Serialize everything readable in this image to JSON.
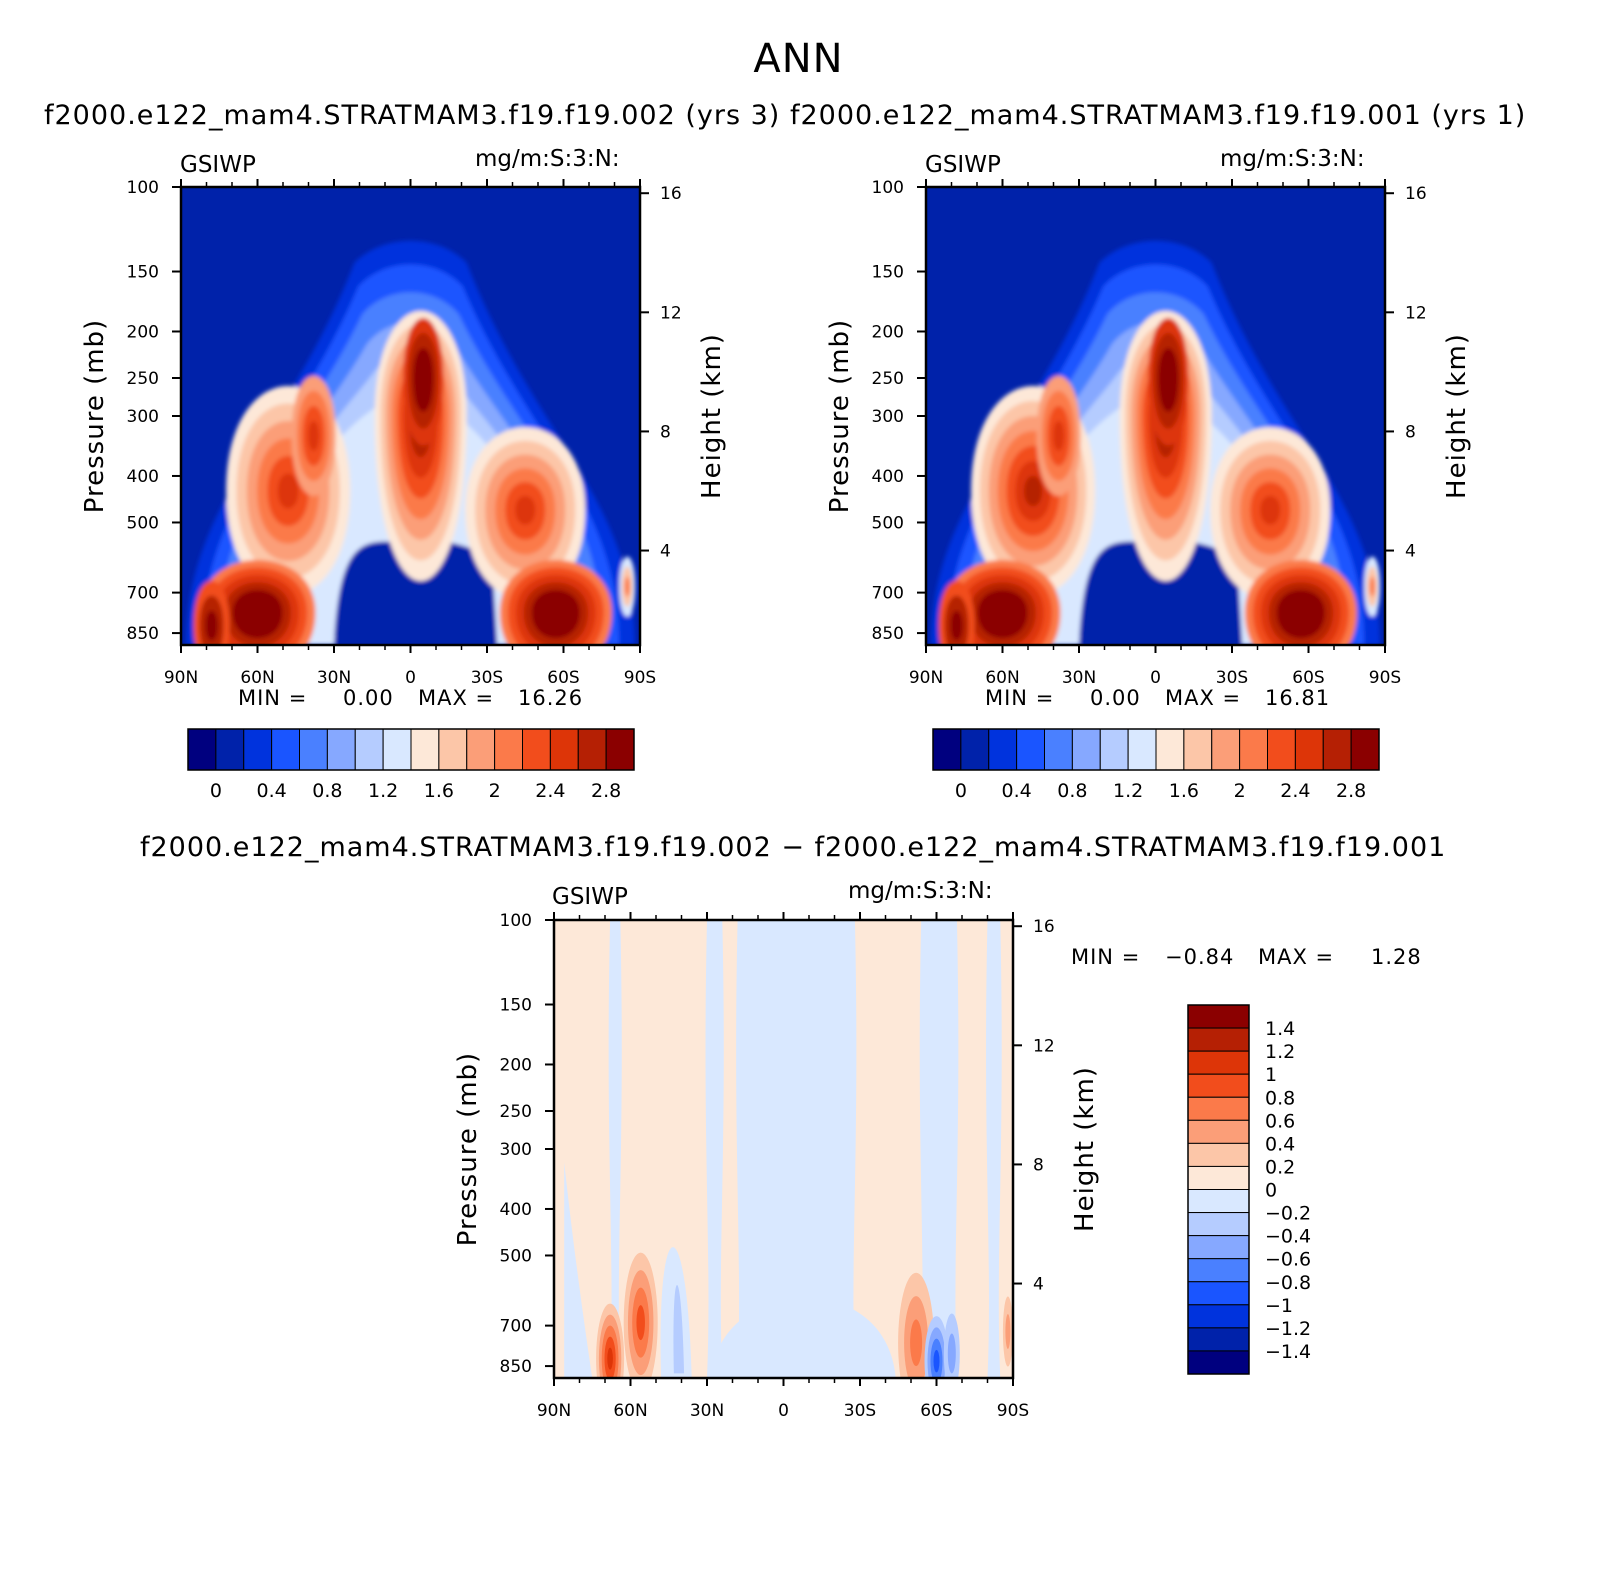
{
  "figure": {
    "title": "ANN",
    "diff_title": "f2000.e122_mam4.STRATMAM3.f19.f19.002 − f2000.e122_mam4.STRATMAM3.f19.f19.001"
  },
  "panels": {
    "p1": {
      "title": "f2000.e122_mam4.STRATMAM3.f19.f19.002 (yrs 3)",
      "left_label": "GSIWP",
      "right_label": "mg/m:S:3:N:",
      "min_label": "MIN =",
      "min_value": "0.00",
      "max_label": "MAX =",
      "max_value": "16.26"
    },
    "p2": {
      "title": "f2000.e122_mam4.STRATMAM3.f19.f19.001 (yrs 1)",
      "left_label": "GSIWP",
      "right_label": "mg/m:S:3:N:",
      "min_label": "MIN =",
      "min_value": "0.00",
      "max_label": "MAX =",
      "max_value": "16.81"
    },
    "p3": {
      "left_label": "GSIWP",
      "right_label": "mg/m:S:3:N:",
      "min_label": "MIN =",
      "min_value": "−0.84",
      "max_label": "MAX =",
      "max_value": "1.28"
    }
  },
  "colors": {
    "abs_levels": [
      "#00007f",
      "#0022aa",
      "#0033dd",
      "#1a55ff",
      "#4a80ff",
      "#86a8ff",
      "#b5ccff",
      "#d9e8ff",
      "#fde8d8",
      "#fcc6a8",
      "#fb9e78",
      "#fb7a4a",
      "#f24d1c",
      "#dd3508",
      "#b52004",
      "#8b0000"
    ],
    "diff_levels": [
      "#8b0000",
      "#b52004",
      "#dd3508",
      "#f24d1c",
      "#fb7a4a",
      "#fb9e78",
      "#fcc6a8",
      "#fde8d8",
      "#d9e8ff",
      "#b5ccff",
      "#86a8ff",
      "#4a80ff",
      "#1a55ff",
      "#0033dd",
      "#0022aa",
      "#00007f"
    ]
  },
  "chart_data": [
    {
      "type": "heatmap",
      "name": "panel-1",
      "title": "f2000.e122_mam4.STRATMAM3.f19.f19.002 (yrs 3)",
      "variable": "GSIWP",
      "units": "mg/m:S:3:N:",
      "xlabel": "",
      "ylabel": "Pressure (mb)",
      "y2label": "Height (km)",
      "x_ticks": [
        "90N",
        "60N",
        "30N",
        "0",
        "30S",
        "60S",
        "90S"
      ],
      "y_ticks": [
        "100",
        "150",
        "200",
        "250",
        "300",
        "400",
        "500",
        "700",
        "850"
      ],
      "y2_ticks": [
        "16",
        "12",
        "8",
        "4"
      ],
      "xlim": [
        90,
        -90
      ],
      "ylim": [
        900,
        100
      ],
      "colorbar_ticks": [
        "0",
        "0.4",
        "0.8",
        "1.2",
        "1.6",
        "2",
        "2.4",
        "2.8"
      ],
      "colorbar_levels": [
        0,
        0.2,
        0.4,
        0.6,
        0.8,
        1.0,
        1.2,
        1.4,
        1.6,
        1.8,
        2.0,
        2.2,
        2.4,
        2.6,
        2.8
      ],
      "features": [
        {
          "lat": 58,
          "p": 760,
          "value": 3.0
        },
        {
          "lat": 45,
          "p": 400,
          "value": 2.3
        },
        {
          "lat": -5,
          "p": 260,
          "value": 3.0
        },
        {
          "lat": -58,
          "p": 760,
          "value": 3.0
        },
        {
          "lat": -45,
          "p": 450,
          "value": 2.0
        }
      ],
      "min": 0.0,
      "max": 16.26
    },
    {
      "type": "heatmap",
      "name": "panel-2",
      "title": "f2000.e122_mam4.STRATMAM3.f19.f19.001 (yrs 1)",
      "variable": "GSIWP",
      "units": "mg/m:S:3:N:",
      "xlabel": "",
      "ylabel": "Pressure (mb)",
      "y2label": "Height (km)",
      "x_ticks": [
        "90N",
        "60N",
        "30N",
        "0",
        "30S",
        "60S",
        "90S"
      ],
      "y_ticks": [
        "100",
        "150",
        "200",
        "250",
        "300",
        "400",
        "500",
        "700",
        "850"
      ],
      "y2_ticks": [
        "16",
        "12",
        "8",
        "4"
      ],
      "xlim": [
        90,
        -90
      ],
      "ylim": [
        900,
        100
      ],
      "colorbar_ticks": [
        "0",
        "0.4",
        "0.8",
        "1.2",
        "1.6",
        "2",
        "2.4",
        "2.8"
      ],
      "colorbar_levels": [
        0,
        0.2,
        0.4,
        0.6,
        0.8,
        1.0,
        1.2,
        1.4,
        1.6,
        1.8,
        2.0,
        2.2,
        2.4,
        2.6,
        2.8
      ],
      "features": [
        {
          "lat": 58,
          "p": 760,
          "value": 3.0
        },
        {
          "lat": 45,
          "p": 400,
          "value": 2.4
        },
        {
          "lat": -5,
          "p": 260,
          "value": 3.0
        },
        {
          "lat": -58,
          "p": 760,
          "value": 3.0
        },
        {
          "lat": -45,
          "p": 450,
          "value": 2.1
        }
      ],
      "min": 0.0,
      "max": 16.81
    },
    {
      "type": "heatmap",
      "name": "panel-difference",
      "title": "f2000.e122_mam4.STRATMAM3.f19.f19.002 − f2000.e122_mam4.STRATMAM3.f19.f19.001",
      "variable": "GSIWP",
      "units": "mg/m:S:3:N:",
      "xlabel": "",
      "ylabel": "Pressure (mb)",
      "y2label": "Height (km)",
      "x_ticks": [
        "90N",
        "60N",
        "30N",
        "0",
        "30S",
        "60S",
        "90S"
      ],
      "y_ticks": [
        "100",
        "150",
        "200",
        "250",
        "300",
        "400",
        "500",
        "700",
        "850"
      ],
      "y2_ticks": [
        "16",
        "12",
        "8",
        "4"
      ],
      "xlim": [
        90,
        -90
      ],
      "ylim": [
        900,
        100
      ],
      "colorbar_ticks": [
        "1.4",
        "1.2",
        "1",
        "0.8",
        "0.6",
        "0.4",
        "0.2",
        "0",
        "−0.2",
        "−0.4",
        "−0.6",
        "−0.8",
        "−1",
        "−1.2",
        "−1.4"
      ],
      "colorbar_levels": [
        1.4,
        1.2,
        1.0,
        0.8,
        0.6,
        0.4,
        0.2,
        0,
        -0.2,
        -0.4,
        -0.6,
        -0.8,
        -1.0,
        -1.2,
        -1.4
      ],
      "features": [
        {
          "lat": 68,
          "p": 820,
          "value": 1.2
        },
        {
          "lat": 55,
          "p": 690,
          "value": 0.9
        },
        {
          "lat": -50,
          "p": 740,
          "value": 0.7
        },
        {
          "lat": -60,
          "p": 830,
          "value": -0.8
        }
      ],
      "min": -0.84,
      "max": 1.28
    }
  ]
}
